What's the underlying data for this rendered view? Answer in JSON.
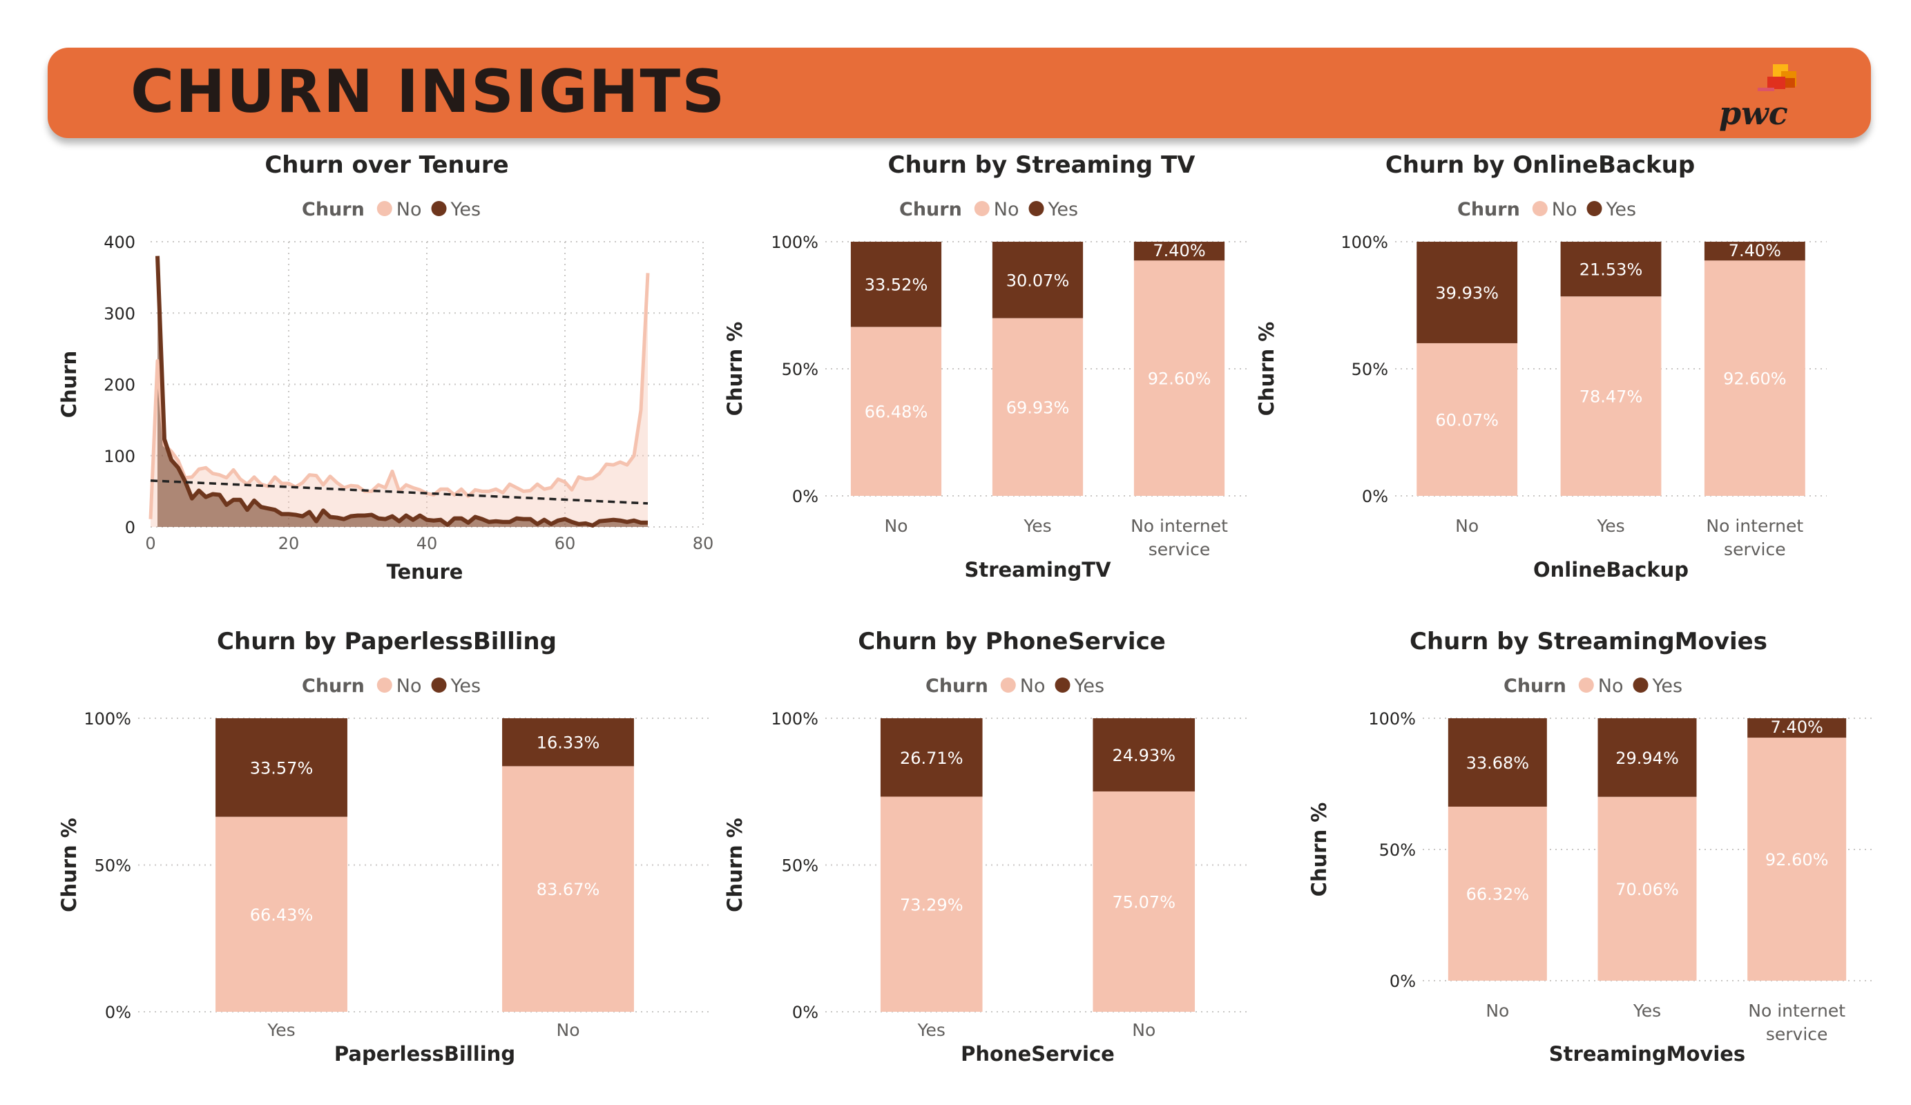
{
  "page": {
    "title": "CHURN INSIGHTS",
    "logo_text": "pwc"
  },
  "colors": {
    "banner": "#E76D39",
    "no": "#F5C2AF",
    "yes": "#6E361D",
    "trend": "#222222"
  },
  "chart_data": [
    {
      "id": "tenure",
      "type": "area",
      "title": "Churn over Tenure",
      "legend_title": "Churn",
      "legend": [
        "No",
        "Yes"
      ],
      "xlabel": "Tenure",
      "ylabel": "Churn",
      "xlim": [
        0,
        80
      ],
      "ylim": [
        0,
        400
      ],
      "xticks": [
        "0",
        "20",
        "40",
        "60",
        "80"
      ],
      "yticks": [
        "0",
        "100",
        "200",
        "300",
        "400"
      ],
      "trendline": {
        "series": "Yes",
        "from": [
          0,
          65
        ],
        "to": [
          72,
          33
        ]
      },
      "series": [
        {
          "name": "No",
          "x": [
            0,
            1,
            2,
            3,
            4,
            5,
            6,
            7,
            8,
            9,
            10,
            11,
            12,
            13,
            14,
            15,
            16,
            17,
            18,
            19,
            20,
            21,
            22,
            23,
            24,
            25,
            26,
            27,
            28,
            29,
            30,
            31,
            32,
            33,
            34,
            35,
            36,
            37,
            38,
            39,
            40,
            41,
            42,
            43,
            44,
            45,
            46,
            47,
            48,
            49,
            50,
            51,
            52,
            53,
            54,
            55,
            56,
            57,
            58,
            59,
            60,
            61,
            62,
            63,
            64,
            65,
            66,
            67,
            68,
            69,
            70,
            71,
            72
          ],
          "values": [
            11,
            233,
            115,
            106,
            93,
            69,
            70,
            81,
            83,
            75,
            73,
            69,
            80,
            67,
            60,
            70,
            60,
            57,
            70,
            61,
            61,
            56,
            62,
            73,
            72,
            59,
            71,
            62,
            55,
            58,
            57,
            50,
            50,
            59,
            55,
            78,
            50,
            59,
            55,
            52,
            47,
            45,
            53,
            53,
            45,
            53,
            43,
            52,
            50,
            50,
            53,
            48,
            60,
            55,
            50,
            51,
            60,
            53,
            55,
            67,
            63,
            52,
            70,
            67,
            68,
            75,
            88,
            87,
            91,
            87,
            100,
            164,
            356
          ]
        },
        {
          "name": "Yes",
          "x": [
            1,
            2,
            3,
            4,
            5,
            6,
            7,
            8,
            9,
            10,
            11,
            12,
            13,
            14,
            15,
            16,
            17,
            18,
            19,
            20,
            21,
            22,
            23,
            24,
            25,
            26,
            27,
            28,
            29,
            30,
            31,
            32,
            33,
            34,
            35,
            36,
            37,
            38,
            39,
            40,
            41,
            42,
            43,
            44,
            45,
            46,
            47,
            48,
            49,
            50,
            51,
            52,
            53,
            54,
            55,
            56,
            57,
            58,
            59,
            60,
            61,
            62,
            63,
            64,
            65,
            66,
            67,
            68,
            69,
            70,
            71,
            72
          ],
          "values": [
            380,
            123,
            94,
            83,
            64,
            40,
            51,
            42,
            46,
            45,
            31,
            38,
            38,
            24,
            37,
            28,
            26,
            24,
            18,
            18,
            17,
            15,
            21,
            8,
            23,
            14,
            13,
            11,
            15,
            16,
            16,
            17,
            12,
            11,
            15,
            8,
            16,
            10,
            16,
            10,
            9,
            10,
            3,
            12,
            12,
            6,
            14,
            11,
            7,
            8,
            7,
            7,
            12,
            11,
            11,
            4,
            10,
            4,
            9,
            11,
            7,
            4,
            5,
            2,
            8,
            9,
            10,
            9,
            7,
            9,
            6,
            6
          ]
        }
      ]
    },
    {
      "id": "streamingtv",
      "type": "bar",
      "stacked_percent": true,
      "title": "Churn by Streaming TV",
      "legend_title": "Churn",
      "legend": [
        "No",
        "Yes"
      ],
      "xlabel": "StreamingTV",
      "ylabel": "Churn %",
      "yticks": [
        "0%",
        "50%",
        "100%"
      ],
      "categories": [
        [
          "No"
        ],
        [
          "Yes"
        ],
        [
          "No internet",
          "service"
        ]
      ],
      "series": [
        {
          "name": "No",
          "values": [
            66.48,
            69.93,
            92.6
          ],
          "labels": [
            "66.48%",
            "69.93%",
            "92.60%"
          ]
        },
        {
          "name": "Yes",
          "values": [
            33.52,
            30.07,
            7.4
          ],
          "labels": [
            "33.52%",
            "30.07%",
            "7.40%"
          ]
        }
      ]
    },
    {
      "id": "onlinebackup",
      "type": "bar",
      "stacked_percent": true,
      "title": "Churn by OnlineBackup",
      "legend_title": "Churn",
      "legend": [
        "No",
        "Yes"
      ],
      "xlabel": "OnlineBackup",
      "ylabel": "Churn %",
      "yticks": [
        "0%",
        "50%",
        "100%"
      ],
      "categories": [
        [
          "No"
        ],
        [
          "Yes"
        ],
        [
          "No internet",
          "service"
        ]
      ],
      "series": [
        {
          "name": "No",
          "values": [
            60.07,
            78.47,
            92.6
          ],
          "labels": [
            "60.07%",
            "78.47%",
            "92.60%"
          ]
        },
        {
          "name": "Yes",
          "values": [
            39.93,
            21.53,
            7.4
          ],
          "labels": [
            "39.93%",
            "21.53%",
            "7.40%"
          ]
        }
      ]
    },
    {
      "id": "paperless",
      "type": "bar",
      "stacked_percent": true,
      "title": "Churn by PaperlessBilling",
      "legend_title": "Churn",
      "legend": [
        "No",
        "Yes"
      ],
      "xlabel": "PaperlessBilling",
      "ylabel": "Churn %",
      "yticks": [
        "0%",
        "50%",
        "100%"
      ],
      "categories": [
        [
          "Yes"
        ],
        [
          "No"
        ]
      ],
      "series": [
        {
          "name": "No",
          "values": [
            66.43,
            83.67
          ],
          "labels": [
            "66.43%",
            "83.67%"
          ]
        },
        {
          "name": "Yes",
          "values": [
            33.57,
            16.33
          ],
          "labels": [
            "33.57%",
            "16.33%"
          ]
        }
      ]
    },
    {
      "id": "phoneservice",
      "type": "bar",
      "stacked_percent": true,
      "title": "Churn by PhoneService",
      "legend_title": "Churn",
      "legend": [
        "No",
        "Yes"
      ],
      "xlabel": "PhoneService",
      "ylabel": "Churn %",
      "yticks": [
        "0%",
        "50%",
        "100%"
      ],
      "categories": [
        [
          "Yes"
        ],
        [
          "No"
        ]
      ],
      "series": [
        {
          "name": "No",
          "values": [
            73.29,
            75.07
          ],
          "labels": [
            "73.29%",
            "75.07%"
          ]
        },
        {
          "name": "Yes",
          "values": [
            26.71,
            24.93
          ],
          "labels": [
            "26.71%",
            "24.93%"
          ]
        }
      ]
    },
    {
      "id": "streamingmovies",
      "type": "bar",
      "stacked_percent": true,
      "title": "Churn by StreamingMovies",
      "legend_title": "Churn",
      "legend": [
        "No",
        "Yes"
      ],
      "xlabel": "StreamingMovies",
      "ylabel": "Churn %",
      "yticks": [
        "0%",
        "50%",
        "100%"
      ],
      "categories": [
        [
          "No"
        ],
        [
          "Yes"
        ],
        [
          "No internet",
          "service"
        ]
      ],
      "series": [
        {
          "name": "No",
          "values": [
            66.32,
            70.06,
            92.6
          ],
          "labels": [
            "66.32%",
            "70.06%",
            "92.60%"
          ]
        },
        {
          "name": "Yes",
          "values": [
            33.68,
            29.94,
            7.4
          ],
          "labels": [
            "33.68%",
            "29.94%",
            "7.40%"
          ]
        }
      ]
    }
  ]
}
